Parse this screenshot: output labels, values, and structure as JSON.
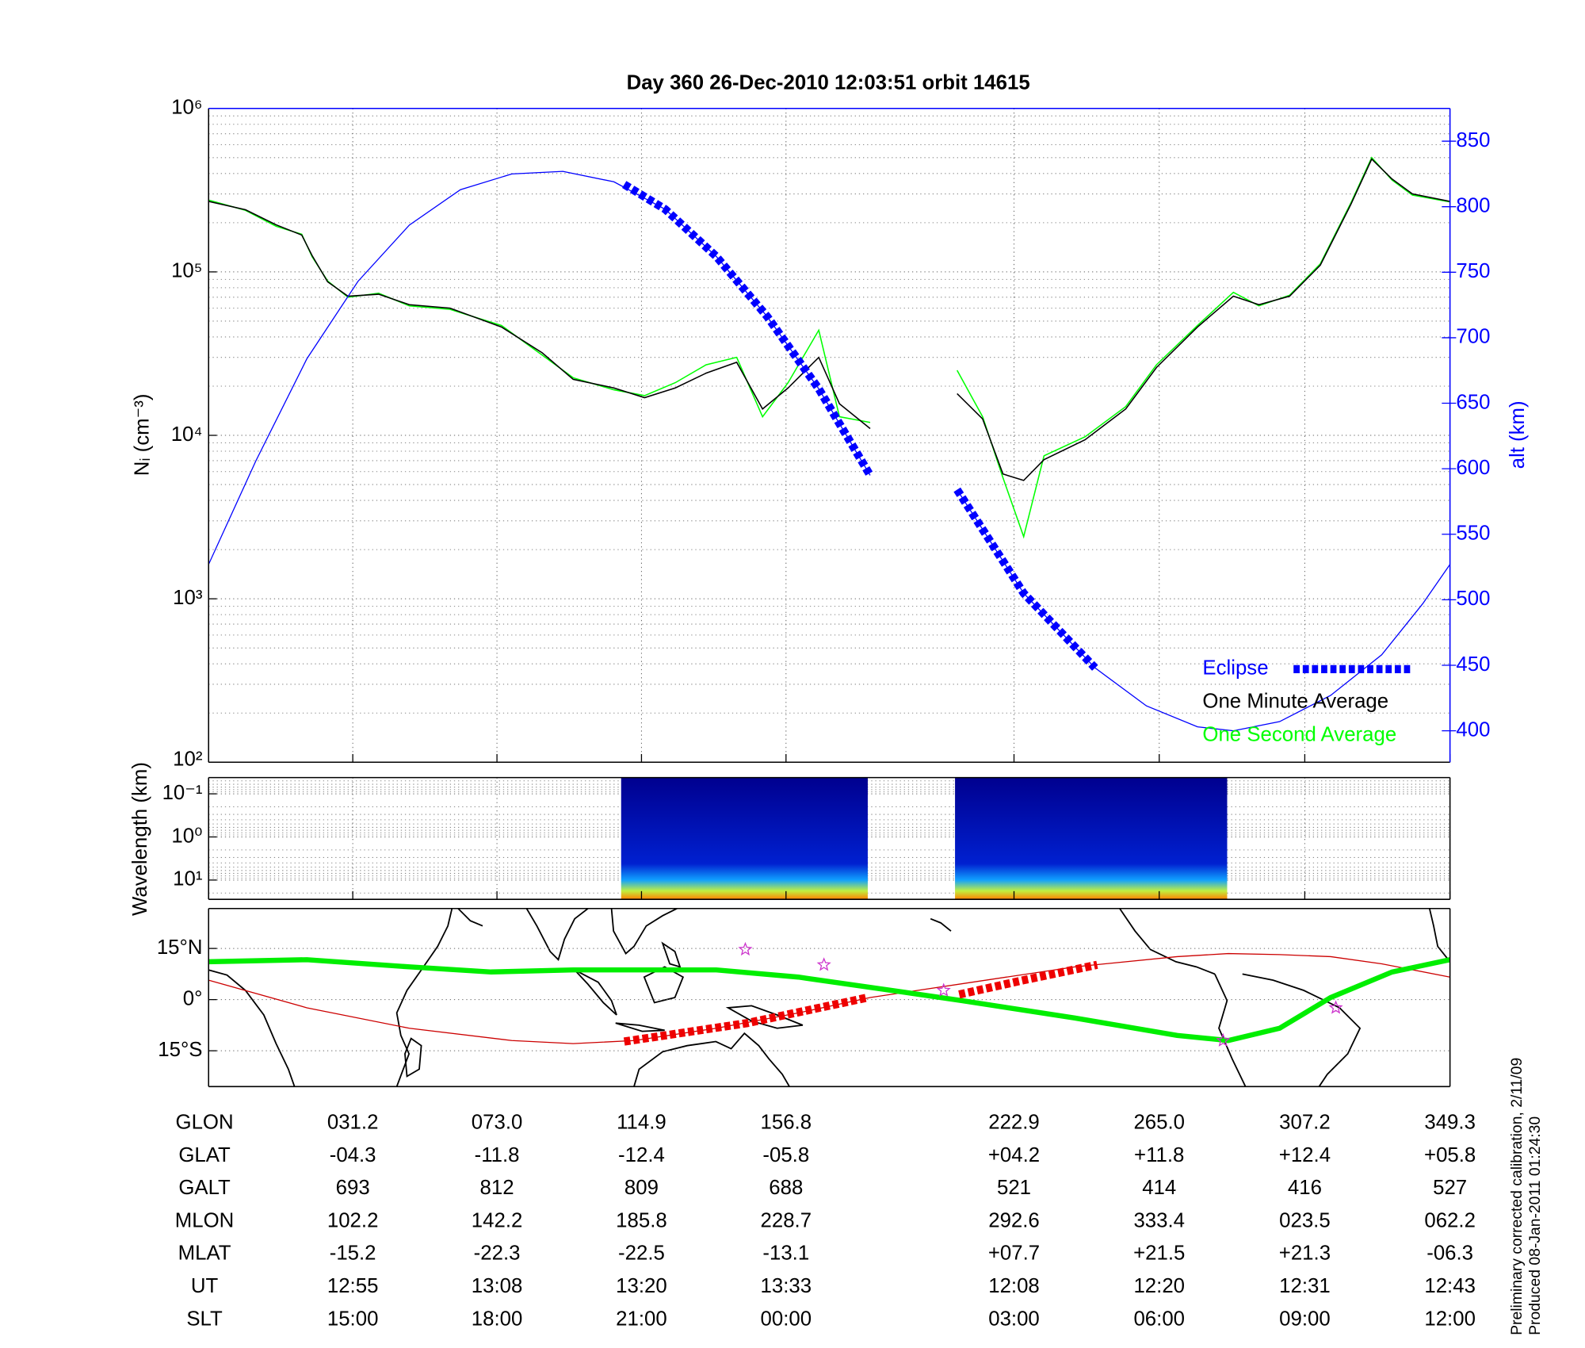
{
  "chart_data": [
    {
      "type": "line",
      "title": "Day 360  26-Dec-2010 12:03:51   orbit 14615",
      "ylabel": "Nᵢ (cm⁻³)",
      "y2label": "alt (km)",
      "log_y": true,
      "grid": true,
      "minor_grid": true,
      "legend": "lower right",
      "ylim": [
        100,
        1000000
      ],
      "yticks": [
        {
          "value": 100,
          "label": "10²"
        },
        {
          "value": 1000,
          "label": "10³"
        },
        {
          "value": 10000,
          "label": "10⁴"
        },
        {
          "value": 100000,
          "label": "10⁵"
        },
        {
          "value": 1000000,
          "label": "10⁶"
        }
      ],
      "y2lim": [
        376,
        875
      ],
      "y2ticks": [
        400,
        450,
        500,
        550,
        600,
        650,
        700,
        750,
        800,
        850
      ],
      "y2color": "#0000ff",
      "xlim": [
        -10.6,
        349.3
      ],
      "xticks": [
        31.2,
        73,
        114.9,
        156.8,
        222.9,
        265,
        307.2,
        349.3
      ],
      "x": [
        -10.6,
        0.1,
        9.0,
        16.4,
        19.4,
        23.9,
        29.8,
        38.7,
        47.6,
        59.4,
        74.3,
        86.1,
        95.1,
        106.9,
        115.8,
        124.7,
        133.6,
        142.5,
        150.0,
        157.4,
        166.3,
        172.3,
        181.2,
        193.0,
        206.4,
        213.8,
        219.7,
        225.7,
        231.6,
        243.5,
        255.3,
        264.2,
        276.1,
        286.5,
        293.9,
        302.8,
        311.7,
        320.6,
        326.6,
        332.5,
        338.4,
        349.3
      ],
      "series": [
        {
          "color": "#0000ff",
          "axis": "y2",
          "width": 1,
          "x": [
            -10.6,
            3.1,
            17.9,
            32.7,
            47.6,
            62.4,
            77.3,
            92.1,
            106.9,
            121.8,
            136.6,
            151.4,
            166.3,
            181.2,
            193.0,
            206.4,
            225.7,
            246.4,
            261.3,
            276.1,
            286.5,
            299.9,
            314.7,
            329.5,
            341.4,
            349.3
          ],
          "values": [
            527,
            606,
            684,
            743,
            786,
            813,
            825,
            827,
            819,
            798,
            762,
            716,
            661,
            595,
            null,
            584,
            505,
            448,
            419,
            403,
            400,
            407,
            427,
            458,
            497,
            527
          ]
        },
        {
          "name": "Eclipse",
          "color": "#0000ff",
          "axis": "y2",
          "width": 8,
          "dashed": true,
          "x": [
            109.9,
            121.8,
            136.6,
            151.4,
            166.3,
            181.2,
            193.0,
            206.4,
            225.7,
            246.4
          ],
          "values": [
            817,
            798,
            762,
            716,
            661,
            595,
            null,
            584,
            505,
            448
          ]
        },
        {
          "name": "One Minute Average",
          "color": "#000000",
          "width": 1.2,
          "values": [
            270000,
            240000,
            194000,
            168000,
            126000,
            87000,
            71000,
            73000,
            63000,
            60000,
            46000,
            32000,
            22000,
            19500,
            17000,
            19500,
            24000,
            28000,
            14500,
            19500,
            30000,
            15600,
            11000,
            null,
            18000,
            12600,
            5800,
            5300,
            7100,
            9400,
            14500,
            26000,
            46000,
            71000,
            63000,
            71000,
            110000,
            260000,
            490000,
            370000,
            300000,
            270000
          ]
        },
        {
          "name": "One Second Average",
          "color": "#00ff00",
          "width": 1.2,
          "values": [
            275000,
            238000,
            190000,
            170000,
            124000,
            88000,
            70000,
            74000,
            62000,
            59000,
            47000,
            31000,
            22500,
            19000,
            17500,
            21000,
            27000,
            30000,
            13000,
            21000,
            44000,
            13000,
            12000,
            null,
            25000,
            13000,
            5500,
            2400,
            7500,
            9800,
            15000,
            27000,
            47000,
            75000,
            62000,
            72000,
            112000,
            265000,
            500000,
            365000,
            295000,
            268000
          ]
        }
      ]
    },
    {
      "type": "heatmap",
      "ylabel": "Wavelength (km)",
      "log_y": true,
      "y_reversed": true,
      "grid": true,
      "minor_grid": true,
      "ylim": [
        0.042,
        28
      ],
      "yticks": [
        {
          "value": 0.1,
          "label": "10⁻¹"
        },
        {
          "value": 1,
          "label": "10⁰"
        },
        {
          "value": 10,
          "label": "10¹"
        }
      ],
      "xlim": [
        -10.6,
        349.3
      ],
      "xticks": [
        31.2,
        73,
        114.9,
        156.8,
        222.9,
        265,
        307.2,
        349.3
      ],
      "segments": [
        [
          109.0,
          180.5
        ],
        [
          205.8,
          284.7
        ]
      ],
      "colormap": [
        "#00008f",
        "#0020d0",
        "#10a0ff",
        "#c0f040",
        "#ff8000"
      ]
    },
    {
      "type": "map",
      "ylim": [
        -25.5,
        26.7
      ],
      "yticks": [
        {
          "value": 15,
          "label": "15°N"
        },
        {
          "value": 0,
          "label": "0°"
        },
        {
          "value": -15,
          "label": "15°S"
        }
      ],
      "xlim": [
        -10.6,
        349.3
      ],
      "series": [
        {
          "color": "#cc0000",
          "width": 1,
          "x": [
            -10.6,
            17.9,
            47.6,
            77.3,
            95.1,
            112.9,
            136.6,
            160.4,
            181.2,
            210.8,
            240.5,
            270.2,
            285.0,
            299.9,
            314.7,
            329.5,
            349.3
          ],
          "values": [
            5.7,
            -2.4,
            -8.4,
            -12.0,
            -12.9,
            -12.0,
            -8.4,
            -3.9,
            0.6,
            5.1,
            9.6,
            12.6,
            13.5,
            13.2,
            12.6,
            10.5,
            6.6
          ]
        },
        {
          "color": "#00ee00",
          "width": 5,
          "x": [
            -10.6,
            17.9,
            47.6,
            71.3,
            95.1,
            136.6,
            160.4,
            181.2,
            207.8,
            240.5,
            270.2,
            285.0,
            299.9,
            314.7,
            332.5,
            349.3
          ],
          "values": [
            11.1,
            11.7,
            9.6,
            8.1,
            8.7,
            8.7,
            6.6,
            3.6,
            -0.3,
            -5.4,
            -10.5,
            -12.0,
            -8.4,
            0.6,
            8.1,
            11.7
          ]
        },
        {
          "color": "#ee0000",
          "width": 8,
          "dashed": true,
          "x": [
            109.9,
            145.5,
            180.5,
            193.0,
            207.0,
            225.7,
            247.0
          ],
          "values": [
            -12.3,
            -6.9,
            0.6,
            null,
            1.5,
            5.7,
            10.2
          ]
        }
      ],
      "markers": {
        "color": "#cc33cc",
        "x": [
          145.0,
          167.8,
          202.5,
          283.5,
          316.2
        ],
        "values": [
          14.7,
          10.2,
          2.7,
          -12.0,
          -2.4
        ]
      }
    }
  ],
  "table": {
    "rows": [
      {
        "label": "GLON",
        "values": [
          "031.2",
          "073.0",
          "114.9",
          "156.8",
          "222.9",
          "265.0",
          "307.2",
          "349.3"
        ]
      },
      {
        "label": "GLAT",
        "values": [
          "-04.3",
          "-11.8",
          "-12.4",
          "-05.8",
          "+04.2",
          "+11.8",
          "+12.4",
          "+05.8"
        ]
      },
      {
        "label": "GALT",
        "values": [
          "693",
          "812",
          "809",
          "688",
          "521",
          "414",
          "416",
          "527"
        ]
      },
      {
        "label": "MLON",
        "values": [
          "102.2",
          "142.2",
          "185.8",
          "228.7",
          "292.6",
          "333.4",
          "023.5",
          "062.2"
        ]
      },
      {
        "label": "MLAT",
        "values": [
          "-15.2",
          "-22.3",
          "-22.5",
          "-13.1",
          "+07.7",
          "+21.5",
          "+21.3",
          "-06.3"
        ]
      },
      {
        "label": "UT",
        "values": [
          "12:55",
          "13:08",
          "13:20",
          "13:33",
          "12:08",
          "12:20",
          "12:31",
          "12:43"
        ]
      },
      {
        "label": "SLT",
        "values": [
          "15:00",
          "18:00",
          "21:00",
          "00:00",
          "03:00",
          "06:00",
          "09:00",
          "12:00"
        ]
      }
    ]
  },
  "notes": [
    "Preliminary corrected calibration, 2/11/09",
    "Produced 08-Jan-2011 01:24:30"
  ]
}
